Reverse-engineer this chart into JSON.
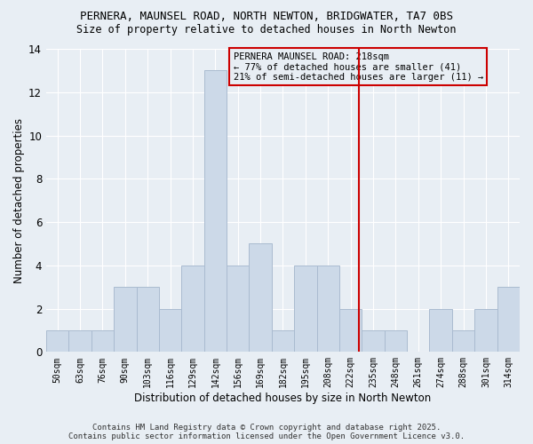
{
  "title1": "PERNERA, MAUNSEL ROAD, NORTH NEWTON, BRIDGWATER, TA7 0BS",
  "title2": "Size of property relative to detached houses in North Newton",
  "xlabel": "Distribution of detached houses by size in North Newton",
  "ylabel": "Number of detached properties",
  "bar_labels": [
    "50sqm",
    "63sqm",
    "76sqm",
    "90sqm",
    "103sqm",
    "116sqm",
    "129sqm",
    "142sqm",
    "156sqm",
    "169sqm",
    "182sqm",
    "195sqm",
    "208sqm",
    "222sqm",
    "235sqm",
    "248sqm",
    "261sqm",
    "274sqm",
    "288sqm",
    "301sqm",
    "314sqm"
  ],
  "bar_values": [
    1,
    1,
    1,
    3,
    3,
    2,
    4,
    13,
    4,
    5,
    1,
    4,
    4,
    2,
    1,
    1,
    0,
    2,
    1,
    2,
    3
  ],
  "bar_color": "#ccd9e8",
  "bar_edge_color": "#aabbd0",
  "background_color": "#e8eef4",
  "grid_color": "#ffffff",
  "red_line_x": 13.35,
  "annotation_text": "PERNERA MAUNSEL ROAD: 218sqm\n← 77% of detached houses are smaller (41)\n21% of semi-detached houses are larger (11) →",
  "annotation_box_facecolor": "#e8eef4",
  "annotation_box_edgecolor": "#cc0000",
  "ylim": [
    0,
    14
  ],
  "yticks": [
    0,
    2,
    4,
    6,
    8,
    10,
    12,
    14
  ],
  "footer1": "Contains HM Land Registry data © Crown copyright and database right 2025.",
  "footer2": "Contains public sector information licensed under the Open Government Licence v3.0."
}
